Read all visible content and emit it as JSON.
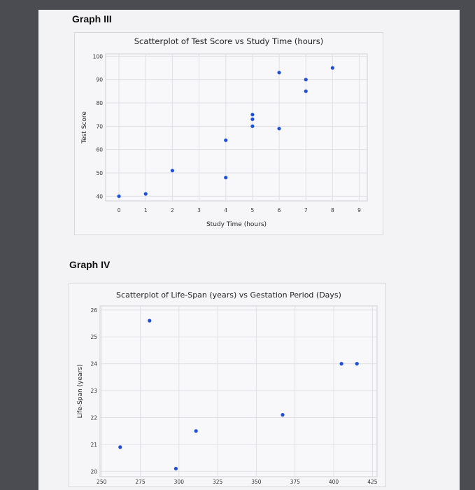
{
  "charts": [
    {
      "label": "Graph III",
      "chart_data": {
        "type": "scatter",
        "title": "Scatterplot of Test Score vs Study Time (hours)",
        "xlabel": "Study Time (hours)",
        "ylabel": "Test Score",
        "xlim": [
          -0.5,
          9.3
        ],
        "ylim": [
          38,
          101
        ],
        "x_ticks": [
          0,
          1,
          2,
          3,
          4,
          5,
          6,
          7,
          8,
          9
        ],
        "y_ticks": [
          40,
          50,
          60,
          70,
          80,
          90,
          100
        ],
        "grid": true,
        "point_color": "#1f4fd6",
        "points": [
          {
            "x": 0,
            "y": 40
          },
          {
            "x": 1,
            "y": 41
          },
          {
            "x": 2,
            "y": 51
          },
          {
            "x": 4,
            "y": 48
          },
          {
            "x": 4,
            "y": 64
          },
          {
            "x": 5,
            "y": 70
          },
          {
            "x": 5,
            "y": 73
          },
          {
            "x": 5,
            "y": 75
          },
          {
            "x": 6,
            "y": 69
          },
          {
            "x": 6,
            "y": 93
          },
          {
            "x": 7,
            "y": 85
          },
          {
            "x": 7,
            "y": 90
          },
          {
            "x": 8,
            "y": 95
          }
        ]
      }
    },
    {
      "label": "Graph IV",
      "chart_data": {
        "type": "scatter",
        "title": "Scatterplot of Life-Span (years) vs Gestation Period (Days)",
        "xlabel": "",
        "ylabel": "Life-Span (years)",
        "xlim": [
          249,
          428
        ],
        "ylim": [
          19.8,
          26.15
        ],
        "x_ticks": [
          250,
          275,
          300,
          325,
          350,
          375,
          400,
          425
        ],
        "y_ticks": [
          20,
          21,
          22,
          23,
          24,
          25,
          26
        ],
        "grid": true,
        "point_color": "#1f4fd6",
        "points": [
          {
            "x": 262,
            "y": 20.9
          },
          {
            "x": 281,
            "y": 25.6
          },
          {
            "x": 298,
            "y": 20.1
          },
          {
            "x": 311,
            "y": 21.5
          },
          {
            "x": 367,
            "y": 22.1
          },
          {
            "x": 405,
            "y": 24.0
          },
          {
            "x": 415,
            "y": 24.0
          }
        ]
      }
    }
  ]
}
